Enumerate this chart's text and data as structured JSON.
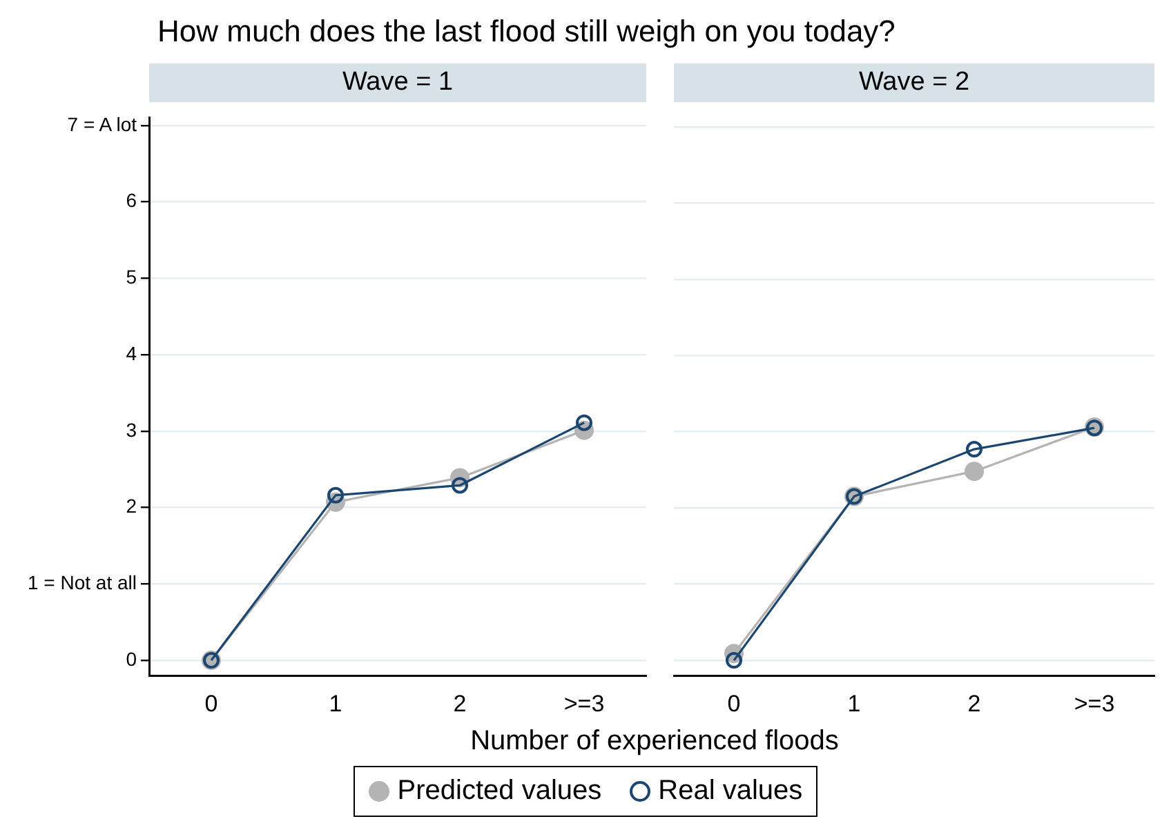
{
  "chart_data": [
    {
      "type": "line",
      "title": "Wave = 1",
      "annotations": [
        "How much does the last flood still weigh on you today?"
      ],
      "xlabel": "Number of experienced floods",
      "categories": [
        "0",
        "1",
        "2",
        ">=3"
      ],
      "series": [
        {
          "name": "Predicted values",
          "color": "#b4b4b4",
          "values": [
            0,
            2.07,
            2.39,
            3.01
          ]
        },
        {
          "name": "Real values",
          "color": "#1a4670",
          "values": [
            0,
            2.16,
            2.29,
            3.11
          ]
        }
      ],
      "ylim": [
        -0.2,
        7.1
      ],
      "yticks": [
        0,
        {
          "value": 1,
          "label": "1 = Not at all"
        },
        2,
        3,
        4,
        5,
        6,
        {
          "value": 7,
          "label": "7 = A lot"
        }
      ],
      "grid": "y",
      "legend": "bottom",
      "marker": "circle",
      "line_style": "solid"
    },
    {
      "type": "line",
      "title": "Wave = 2",
      "categories": [
        "0",
        "1",
        "2",
        ">=3"
      ],
      "series": [
        {
          "color": "#b4b4b4",
          "values": [
            0.09,
            2.15,
            2.48,
            3.06
          ]
        },
        {
          "color": "#1a4670",
          "values": [
            0,
            2.15,
            2.77,
            3.05
          ]
        }
      ],
      "ylim": [
        -0.2,
        7
      ],
      "yticks": [
        0,
        1,
        2,
        3,
        4,
        5,
        6,
        7
      ],
      "grid": "y",
      "tick_labels": "x",
      "marker": "circle",
      "line_style": "solid"
    }
  ]
}
